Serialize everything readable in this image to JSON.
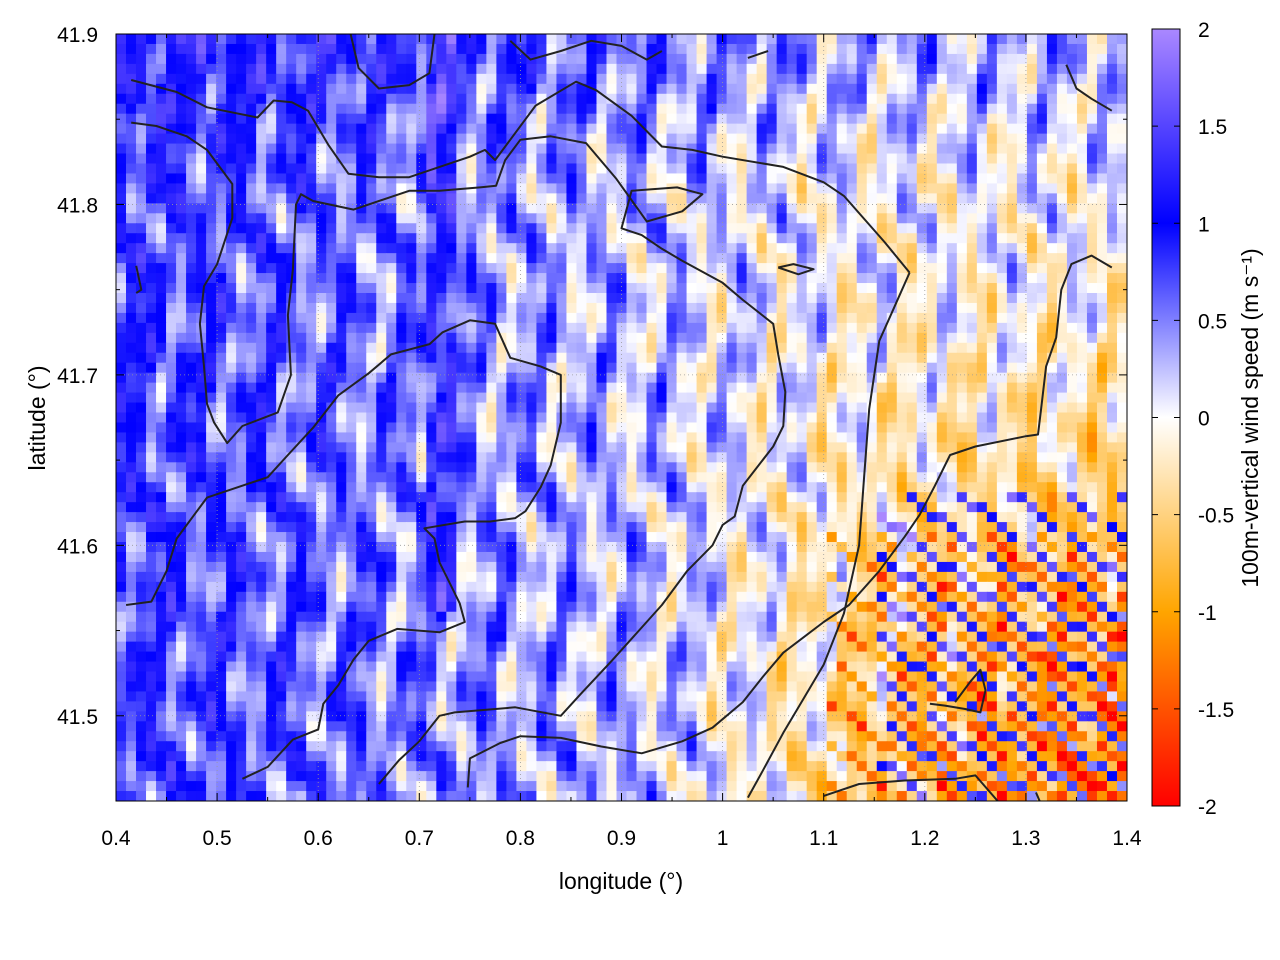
{
  "chart_data": {
    "type": "heatmap",
    "title": "",
    "xlabel": "longitude (°)",
    "ylabel": "latitude (°)",
    "colorbar_label": "100m-vertical wind speed (m s⁻¹)",
    "xlim": [
      0.4,
      1.4
    ],
    "ylim": [
      41.45,
      41.9
    ],
    "x_ticks": [
      0.4,
      0.5,
      0.6,
      0.7,
      0.8,
      0.9,
      1.0,
      1.1,
      1.2,
      1.3,
      1.4
    ],
    "x_tick_labels": [
      "0.4",
      "0.5",
      "0.6",
      "0.7",
      "0.8",
      "0.9",
      "1",
      "1.1",
      "1.2",
      "1.3",
      "1.4"
    ],
    "y_ticks": [
      41.5,
      41.6,
      41.7,
      41.8,
      41.9
    ],
    "y_tick_labels": [
      "41.5",
      "41.6",
      "41.7",
      "41.8",
      "41.9"
    ],
    "colorbar_range": [
      -2,
      2
    ],
    "colorbar_ticks": [
      -2,
      -1.5,
      -1,
      -0.5,
      0,
      0.5,
      1,
      1.5,
      2
    ],
    "colorbar_tick_labels": [
      "-2",
      "-1.5",
      "-1",
      "-0.5",
      "0",
      "0.5",
      "1",
      "1.5",
      "2"
    ],
    "colormap": [
      {
        "value": -2,
        "color": "#ff0000"
      },
      {
        "value": -1,
        "color": "#ffa500"
      },
      {
        "value": 0,
        "color": "#ffffff"
      },
      {
        "value": 1,
        "color": "#0000ff"
      },
      {
        "value": 2,
        "color": "#aa88ff"
      }
    ],
    "grid": true,
    "contour_color": "#222222",
    "contours": [
      [
        [
          0.415,
          41.873
        ],
        [
          0.46,
          41.866
        ],
        [
          0.49,
          41.857
        ],
        [
          0.54,
          41.851
        ],
        [
          0.556,
          41.861
        ],
        [
          0.574,
          41.86
        ],
        [
          0.59,
          41.855
        ],
        [
          0.61,
          41.835
        ],
        [
          0.63,
          41.818
        ],
        [
          0.66,
          41.816
        ],
        [
          0.69,
          41.816
        ],
        [
          0.72,
          41.822
        ],
        [
          0.75,
          41.828
        ],
        [
          0.765,
          41.832
        ],
        [
          0.775,
          41.826
        ],
        [
          0.79,
          41.838
        ],
        [
          0.815,
          41.858
        ],
        [
          0.855,
          41.872
        ],
        [
          0.875,
          41.867
        ],
        [
          0.91,
          41.852
        ],
        [
          0.94,
          41.834
        ],
        [
          0.97,
          41.832
        ],
        [
          1.0,
          41.828
        ],
        [
          1.06,
          41.822
        ],
        [
          1.1,
          41.813
        ],
        [
          1.12,
          41.805
        ],
        [
          1.16,
          41.778
        ],
        [
          1.185,
          41.76
        ]
      ],
      [
        [
          0.415,
          41.848
        ],
        [
          0.44,
          41.846
        ],
        [
          0.47,
          41.84
        ],
        [
          0.49,
          41.832
        ],
        [
          0.515,
          41.812
        ],
        [
          0.515,
          41.792
        ],
        [
          0.5,
          41.765
        ],
        [
          0.487,
          41.752
        ],
        [
          0.483,
          41.73
        ],
        [
          0.487,
          41.705
        ],
        [
          0.49,
          41.683
        ],
        [
          0.497,
          41.672
        ],
        [
          0.51,
          41.66
        ],
        [
          0.525,
          41.67
        ],
        [
          0.56,
          41.678
        ],
        [
          0.573,
          41.7
        ],
        [
          0.57,
          41.735
        ],
        [
          0.575,
          41.762
        ],
        [
          0.578,
          41.8
        ],
        [
          0.583,
          41.806
        ],
        [
          0.595,
          41.802
        ],
        [
          0.635,
          41.797
        ],
        [
          0.65,
          41.8
        ],
        [
          0.69,
          41.808
        ],
        [
          0.72,
          41.808
        ],
        [
          0.76,
          41.81
        ],
        [
          0.776,
          41.811
        ],
        [
          0.785,
          41.826
        ],
        [
          0.8,
          41.838
        ],
        [
          0.83,
          41.84
        ],
        [
          0.865,
          41.836
        ],
        [
          0.895,
          41.815
        ],
        [
          0.925,
          41.79
        ],
        [
          0.96,
          41.796
        ],
        [
          0.98,
          41.806
        ],
        [
          0.955,
          41.81
        ],
        [
          0.91,
          41.808
        ],
        [
          0.9,
          41.786
        ],
        [
          0.92,
          41.782
        ],
        [
          0.94,
          41.774
        ],
        [
          0.96,
          41.767
        ],
        [
          1.0,
          41.754
        ],
        [
          1.02,
          41.744
        ],
        [
          1.05,
          41.73
        ],
        [
          1.055,
          41.712
        ],
        [
          1.062,
          41.69
        ],
        [
          1.06,
          41.67
        ],
        [
          1.05,
          41.658
        ],
        [
          1.02,
          41.635
        ],
        [
          1.012,
          41.617
        ],
        [
          1.0,
          41.612
        ],
        [
          0.99,
          41.6
        ],
        [
          0.965,
          41.585
        ],
        [
          0.94,
          41.565
        ],
        [
          0.89,
          41.532
        ],
        [
          0.86,
          41.513
        ],
        [
          0.84,
          41.5
        ],
        [
          0.795,
          41.505
        ],
        [
          0.735,
          41.502
        ],
        [
          0.72,
          41.5
        ],
        [
          0.7,
          41.485
        ],
        [
          0.68,
          41.474
        ],
        [
          0.66,
          41.46
        ]
      ],
      [
        [
          0.41,
          41.565
        ],
        [
          0.435,
          41.567
        ],
        [
          0.45,
          41.585
        ],
        [
          0.46,
          41.604
        ],
        [
          0.48,
          41.62
        ],
        [
          0.49,
          41.628
        ],
        [
          0.515,
          41.633
        ],
        [
          0.55,
          41.64
        ],
        [
          0.57,
          41.653
        ],
        [
          0.595,
          41.669
        ],
        [
          0.62,
          41.688
        ],
        [
          0.65,
          41.701
        ],
        [
          0.672,
          41.712
        ],
        [
          0.71,
          41.718
        ],
        [
          0.723,
          41.725
        ],
        [
          0.75,
          41.732
        ],
        [
          0.775,
          41.73
        ],
        [
          0.79,
          41.71
        ],
        [
          0.82,
          41.705
        ],
        [
          0.84,
          41.7
        ],
        [
          0.84,
          41.672
        ],
        [
          0.83,
          41.647
        ],
        [
          0.82,
          41.634
        ],
        [
          0.805,
          41.62
        ],
        [
          0.795,
          41.616
        ],
        [
          0.77,
          41.614
        ],
        [
          0.745,
          41.614
        ],
        [
          0.705,
          41.61
        ],
        [
          0.715,
          41.604
        ],
        [
          0.72,
          41.59
        ],
        [
          0.73,
          41.578
        ],
        [
          0.74,
          41.566
        ],
        [
          0.745,
          41.555
        ],
        [
          0.72,
          41.549
        ],
        [
          0.678,
          41.551
        ],
        [
          0.65,
          41.544
        ],
        [
          0.635,
          41.533
        ],
        [
          0.62,
          41.518
        ],
        [
          0.605,
          41.507
        ],
        [
          0.6,
          41.492
        ],
        [
          0.575,
          41.486
        ],
        [
          0.55,
          41.47
        ],
        [
          0.525,
          41.463
        ]
      ],
      [
        [
          0.748,
          41.458
        ],
        [
          0.75,
          41.475
        ],
        [
          0.78,
          41.484
        ],
        [
          0.8,
          41.488
        ],
        [
          0.84,
          41.487
        ],
        [
          0.88,
          41.482
        ],
        [
          0.92,
          41.478
        ],
        [
          0.96,
          41.485
        ],
        [
          0.99,
          41.493
        ],
        [
          1.02,
          41.508
        ],
        [
          1.04,
          41.523
        ],
        [
          1.06,
          41.537
        ],
        [
          1.1,
          41.555
        ],
        [
          1.125,
          41.565
        ],
        [
          1.155,
          41.585
        ],
        [
          1.18,
          41.605
        ],
        [
          1.195,
          41.618
        ],
        [
          1.21,
          41.635
        ],
        [
          1.225,
          41.653
        ],
        [
          1.25,
          41.658
        ],
        [
          1.3,
          41.664
        ],
        [
          1.312,
          41.665
        ],
        [
          1.315,
          41.68
        ],
        [
          1.32,
          41.705
        ],
        [
          1.33,
          41.722
        ],
        [
          1.335,
          41.75
        ],
        [
          1.345,
          41.765
        ],
        [
          1.365,
          41.77
        ],
        [
          1.385,
          41.763
        ]
      ],
      [
        [
          1.025,
          41.452
        ],
        [
          1.04,
          41.468
        ],
        [
          1.06,
          41.49
        ],
        [
          1.08,
          41.51
        ],
        [
          1.1,
          41.53
        ],
        [
          1.12,
          41.56
        ],
        [
          1.135,
          41.6
        ],
        [
          1.14,
          41.64
        ],
        [
          1.145,
          41.68
        ],
        [
          1.155,
          41.72
        ],
        [
          1.17,
          41.74
        ],
        [
          1.185,
          41.76
        ]
      ],
      [
        [
          1.1,
          41.453
        ],
        [
          1.135,
          41.46
        ],
        [
          1.18,
          41.462
        ],
        [
          1.23,
          41.463
        ],
        [
          1.25,
          41.465
        ],
        [
          1.275,
          41.448
        ]
      ],
      [
        [
          1.205,
          41.507
        ],
        [
          1.22,
          41.506
        ],
        [
          1.24,
          41.504
        ],
        [
          1.255,
          41.502
        ],
        [
          1.26,
          41.515
        ],
        [
          1.255,
          41.527
        ],
        [
          1.245,
          41.52
        ],
        [
          1.23,
          41.508
        ]
      ],
      [
        [
          1.055,
          41.763
        ],
        [
          1.07,
          41.765
        ],
        [
          1.09,
          41.762
        ],
        [
          1.075,
          41.759
        ],
        [
          1.055,
          41.763
        ]
      ],
      [
        [
          0.42,
          41.764
        ],
        [
          0.425,
          41.75
        ],
        [
          0.42,
          41.748
        ]
      ],
      [
        [
          0.632,
          41.9
        ],
        [
          0.64,
          41.88
        ],
        [
          0.66,
          41.868
        ],
        [
          0.69,
          41.87
        ],
        [
          0.71,
          41.877
        ],
        [
          0.715,
          41.9
        ]
      ],
      [
        [
          0.79,
          41.896
        ],
        [
          0.81,
          41.885
        ],
        [
          0.84,
          41.89
        ],
        [
          0.87,
          41.896
        ],
        [
          0.9,
          41.893
        ],
        [
          0.925,
          41.885
        ],
        [
          0.94,
          41.89
        ]
      ],
      [
        [
          1.025,
          41.886
        ],
        [
          1.045,
          41.89
        ]
      ],
      [
        [
          1.34,
          41.882
        ],
        [
          1.35,
          41.868
        ],
        [
          1.365,
          41.862
        ],
        [
          1.385,
          41.855
        ]
      ],
      [
        [
          1.31,
          41.455
        ],
        [
          1.315,
          41.448
        ]
      ]
    ]
  }
}
